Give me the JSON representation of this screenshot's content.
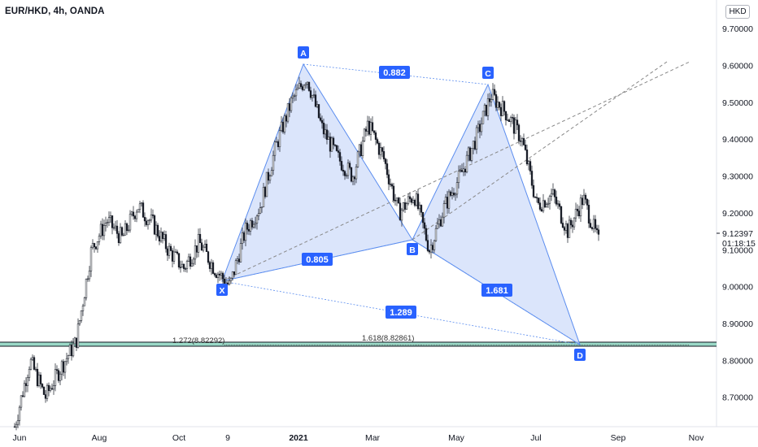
{
  "header": {
    "symbol_title": "EUR/HKD, 4h, OANDA",
    "currency_badge": "HKD"
  },
  "price_axis": {
    "ticks": [
      "9.70000",
      "9.60000",
      "9.50000",
      "9.40000",
      "9.30000",
      "9.20000",
      "9.10000",
      "9.00000",
      "8.90000",
      "8.80000",
      "8.70000"
    ],
    "last_price_label": "9.12397",
    "countdown_label": "01:18:15"
  },
  "time_axis": {
    "ticks": [
      "Jun",
      "Aug",
      "Oct",
      "9",
      "2021",
      "Mar",
      "May",
      "Jul",
      "Sep",
      "Nov"
    ]
  },
  "colors": {
    "candles": "#131722",
    "pattern_line": "#5b8def",
    "pattern_fill": "#cfdcf9",
    "point_badge": "#2962ff",
    "dashed_trend": "#888888",
    "support_band": "#9ad9c7",
    "support_line": "#131722"
  },
  "chart_data": {
    "type": "line",
    "title": "EUR/HKD, 4h, OANDA",
    "xlabel": "",
    "ylabel": "",
    "y_range": [
      8.62,
      9.74
    ],
    "x_ticks": [
      "Jun",
      "Aug",
      "Oct",
      "9",
      "2021",
      "Mar",
      "May",
      "Jul",
      "Sep",
      "Nov"
    ],
    "y_ticks": [
      9.7,
      9.6,
      9.5,
      9.4,
      9.3,
      9.2,
      9.1,
      9.0,
      8.9,
      8.8,
      8.7
    ],
    "grid": false,
    "last_price": 9.12397,
    "countdown": "01:18:15",
    "price_path": [
      {
        "t": "Jun",
        "y": 8.62
      },
      {
        "t": "mid-Jun",
        "y": 8.8
      },
      {
        "t": "late-Jun",
        "y": 8.7
      },
      {
        "t": "early-Jul",
        "y": 8.78
      },
      {
        "t": "mid-Jul",
        "y": 8.85
      },
      {
        "t": "late-Jul",
        "y": 9.1
      },
      {
        "t": "Aug",
        "y": 9.18
      },
      {
        "t": "mid-Aug",
        "y": 9.13
      },
      {
        "t": "late-Aug",
        "y": 9.22
      },
      {
        "t": "Sep",
        "y": 9.17
      },
      {
        "t": "mid-Sep",
        "y": 9.1
      },
      {
        "t": "Oct",
        "y": 9.05
      },
      {
        "t": "mid-Oct",
        "y": 9.12
      },
      {
        "t": "late-Oct",
        "y": 9.05
      },
      {
        "t": "Nov",
        "y": 9.0
      },
      {
        "t": "mid-Nov",
        "y": 9.15
      },
      {
        "t": "Dec",
        "y": 9.22
      },
      {
        "t": "mid-Dec",
        "y": 9.38
      },
      {
        "t": "late-Dec",
        "y": 9.5
      },
      {
        "t": "2021",
        "y": 9.57
      },
      {
        "t": "mid-Jan",
        "y": 9.43
      },
      {
        "t": "late-Jan",
        "y": 9.35
      },
      {
        "t": "Feb",
        "y": 9.3
      },
      {
        "t": "mid-Feb",
        "y": 9.44
      },
      {
        "t": "late-Feb",
        "y": 9.35
      },
      {
        "t": "Mar",
        "y": 9.2
      },
      {
        "t": "mid-Mar",
        "y": 9.25
      },
      {
        "t": "late-Mar",
        "y": 9.1
      },
      {
        "t": "Apr",
        "y": 9.22
      },
      {
        "t": "mid-Apr",
        "y": 9.3
      },
      {
        "t": "May",
        "y": 9.4
      },
      {
        "t": "mid-May",
        "y": 9.52
      },
      {
        "t": "late-May",
        "y": 9.47
      },
      {
        "t": "Jun-21",
        "y": 9.4
      },
      {
        "t": "mid-Jun-21",
        "y": 9.22
      },
      {
        "t": "late-Jun-21",
        "y": 9.25
      },
      {
        "t": "Jul",
        "y": 9.15
      },
      {
        "t": "mid-Jul",
        "y": 9.24
      },
      {
        "t": "late-Jul",
        "y": 9.12
      }
    ],
    "harmonic_pattern": {
      "points": [
        {
          "label": "X",
          "price": 9.0,
          "time": "Nov"
        },
        {
          "label": "A",
          "price": 9.57,
          "time": "2021"
        },
        {
          "label": "B",
          "price": 9.1,
          "time": "late-Mar"
        },
        {
          "label": "C",
          "price": 9.52,
          "time": "mid-May"
        },
        {
          "label": "D",
          "price": 8.83,
          "time": "Aug"
        }
      ],
      "ratios": [
        {
          "between": "XB",
          "label": "0.805"
        },
        {
          "between": "AC",
          "label": "0.882"
        },
        {
          "between": "BD",
          "label": "1.681"
        },
        {
          "between": "XD",
          "label": "1.289"
        }
      ]
    },
    "levels": [
      {
        "label": "1.272(8.82292)",
        "price": 8.82292
      },
      {
        "label": "1.618(8.82861)",
        "price": 8.82861
      }
    ]
  }
}
